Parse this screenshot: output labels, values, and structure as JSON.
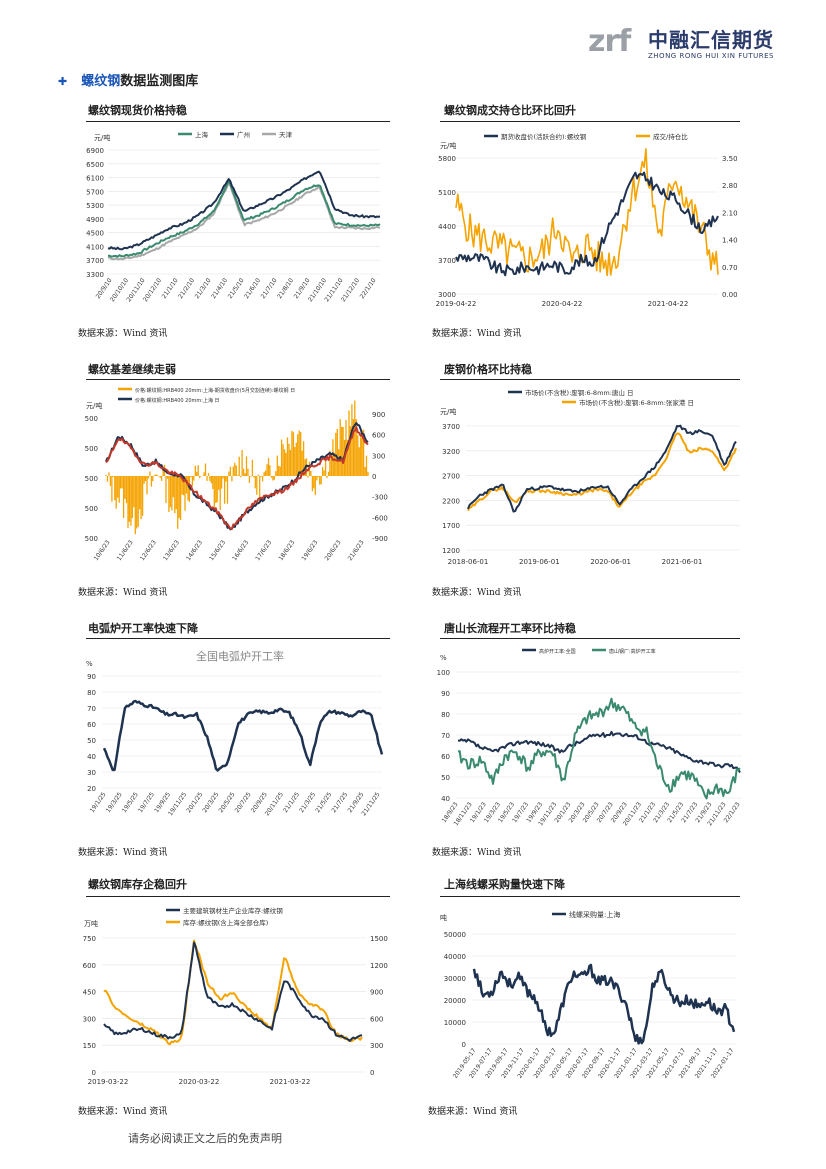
{
  "header": {
    "logo_mark": "zrf",
    "logo_cn": "中融汇信期货",
    "logo_en": "ZHONG RONG HUI XIN FUTURES"
  },
  "section": {
    "bullet_icon": "plus-arrow-icon",
    "title_highlight": "螺纹钢",
    "title_rest": "数据监测图库"
  },
  "source_text": "数据来源：Wind 资讯",
  "disclaimer": "请务必阅读正文之后的免责声明",
  "colors": {
    "navy": "#1f3350",
    "orange": "#f5a300",
    "green": "#3a8a6e",
    "gray": "#a8a8a8",
    "red": "#c0392b"
  },
  "charts": [
    {
      "title": "螺纹钢现货价格持稳",
      "unit": "元/吨",
      "legend": [
        "上海",
        "广州",
        "天津"
      ],
      "yticks": [
        "6900",
        "6500",
        "6100",
        "5700",
        "5300",
        "4900",
        "4500",
        "4100",
        "3700",
        "3300"
      ],
      "xticks": [
        "20/9/10",
        "20/10/10",
        "20/11/10",
        "20/12/10",
        "21/1/10",
        "21/2/10",
        "21/3/10",
        "21/4/10",
        "21/5/10",
        "21/6/10",
        "21/7/10",
        "21/8/10",
        "21/9/10",
        "21/10/10",
        "21/11/10",
        "21/12/10",
        "22/1/10"
      ]
    },
    {
      "title": "螺纹钢成交持仓比环比回升",
      "unit": "元/吨",
      "legend": [
        "期货收盘价(活跃合约):螺纹钢",
        "成交/持仓比"
      ],
      "yticks_left": [
        "5800",
        "5100",
        "4400",
        "3700",
        "3000"
      ],
      "yticks_right": [
        "3.50",
        "2.80",
        "2.10",
        "1.40",
        "0.70",
        "0.00"
      ],
      "xticks": [
        "2019-04-22",
        "2020-04-22",
        "2021-04-22"
      ]
    },
    {
      "title": "螺纹基差继续走弱",
      "unit": "元/吨",
      "legend": [
        "价格:螺纹钢:HRB400 20mm:上海-期货收盘价(5月交割连续):螺纹钢 日",
        "价格:螺纹钢:HRB400 20mm:上海 日"
      ],
      "yticks_left": [
        "5500",
        "4500",
        "3500",
        "2500",
        "1500"
      ],
      "yticks_right": [
        "900",
        "600",
        "300",
        "0",
        "-300",
        "-600",
        "-900"
      ],
      "xticks": [
        "10/6/23",
        "11/6/23",
        "12/6/23",
        "13/6/23",
        "14/6/23",
        "15/6/23",
        "16/6/23",
        "17/6/23",
        "18/6/23",
        "19/6/23",
        "20/6/23",
        "21/6/23"
      ]
    },
    {
      "title": "废钢价格环比持稳",
      "unit": "元/吨",
      "legend": [
        "市场价(不含税):废钢:6-8mm:唐山 日",
        "市场价(不含税):废钢:6-8mm:张家港 日"
      ],
      "yticks": [
        "3700",
        "3200",
        "2700",
        "2200",
        "1700",
        "1200"
      ],
      "xticks": [
        "2018-06-01",
        "2019-06-01",
        "2020-06-01",
        "2021-06-01"
      ]
    },
    {
      "title": "电弧炉开工率快速下降",
      "unit": "%",
      "inner_title": "全国电弧炉开工率",
      "yticks": [
        "90",
        "80",
        "70",
        "60",
        "50",
        "40",
        "30",
        "20"
      ],
      "xticks": [
        "19/1/25",
        "19/3/25",
        "19/5/25",
        "19/7/25",
        "19/9/25",
        "19/11/25",
        "20/1/25",
        "20/3/25",
        "20/5/25",
        "20/7/25",
        "20/9/25",
        "20/11/25",
        "21/1/25",
        "21/3/25",
        "21/5/25",
        "21/7/25",
        "21/9/25",
        "21/11/25"
      ]
    },
    {
      "title": "唐山长流程开工率环比持稳",
      "unit": "%",
      "legend": [
        "高炉开工率:全国",
        "唐山钢厂:高炉开工率"
      ],
      "yticks": [
        "100",
        "90",
        "80",
        "70",
        "60",
        "50",
        "40"
      ],
      "xticks": [
        "18/9/23",
        "18/11/23",
        "19/1/23",
        "19/3/23",
        "19/5/23",
        "19/7/23",
        "19/9/23",
        "19/11/23",
        "20/1/23",
        "20/3/23",
        "20/5/23",
        "20/7/23",
        "20/9/23",
        "20/11/23",
        "21/1/23",
        "21/3/23",
        "21/5/23",
        "21/7/23",
        "21/9/23",
        "21/11/23",
        "22/1/23"
      ]
    },
    {
      "title": "螺纹钢库存企稳回升",
      "unit": "万吨",
      "legend": [
        "主要建筑钢材生产企业库存:螺纹钢",
        "库存:螺纹钢(含上海全部仓库)"
      ],
      "yticks_left": [
        "750",
        "600",
        "450",
        "300",
        "150",
        "0"
      ],
      "yticks_right": [
        "1500",
        "1200",
        "900",
        "600",
        "300",
        "0"
      ],
      "xticks": [
        "2019-03-22",
        "2020-03-22",
        "2021-03-22"
      ]
    },
    {
      "title": "上海线螺采购量快速下降",
      "unit": "吨",
      "legend": [
        "线螺采购量:上海"
      ],
      "yticks": [
        "50000",
        "40000",
        "30000",
        "20000",
        "10000",
        "0"
      ],
      "xticks": [
        "2019-05-17",
        "2019-07-17",
        "2019-09-17",
        "2019-11-17",
        "2020-01-17",
        "2020-03-17",
        "2020-05-17",
        "2020-07-17",
        "2020-09-17",
        "2020-11-17",
        "2021-01-17",
        "2021-03-17",
        "2021-05-17",
        "2021-07-17",
        "2021-09-17",
        "2021-11-17",
        "2022-01-17"
      ]
    }
  ]
}
